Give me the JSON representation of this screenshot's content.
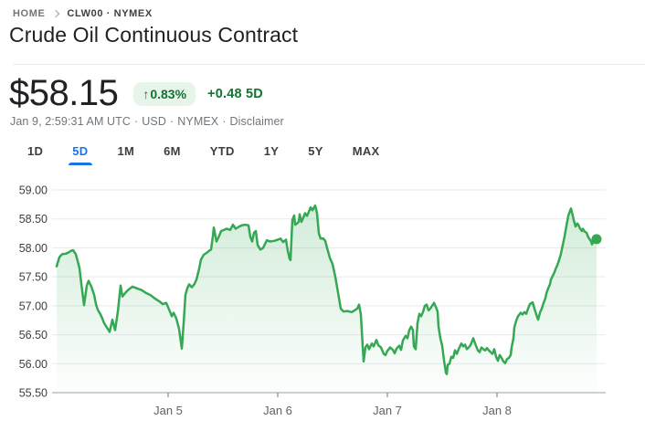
{
  "breadcrumb": {
    "home": "HOME",
    "symbol": "CLW00 · NYMEX"
  },
  "header": {
    "title": "Crude Oil Continuous Contract"
  },
  "quote": {
    "price": "$58.15",
    "arrow": "↑",
    "change_percent": "0.83%",
    "change_absolute": "+0.48 5D",
    "meta": {
      "timestamp": "Jan 9, 2:59:31 AM UTC",
      "separator": "·",
      "currency": "USD",
      "exchange": "NYMEX",
      "disclaimer": "Disclaimer"
    }
  },
  "tabs": [
    {
      "label": "1D",
      "selected": false
    },
    {
      "label": "5D",
      "selected": true
    },
    {
      "label": "1M",
      "selected": false
    },
    {
      "label": "6M",
      "selected": false
    },
    {
      "label": "YTD",
      "selected": false
    },
    {
      "label": "1Y",
      "selected": false
    },
    {
      "label": "5Y",
      "selected": false
    },
    {
      "label": "MAX",
      "selected": false
    }
  ],
  "colors": {
    "up_green": "#137333",
    "badge_bg": "#e6f4ea",
    "line_green": "#34a853",
    "accent_blue": "#1a73e8",
    "grid": "#e8eaed",
    "axis": "#9aa0a6",
    "text_primary": "#202124",
    "text_secondary": "#70757a"
  },
  "chart_data": {
    "type": "area",
    "title": "",
    "xlabel": "",
    "ylabel": "",
    "grid": true,
    "legend": false,
    "ylim": [
      55.5,
      59.0
    ],
    "xlim": [
      3.95,
      9.0
    ],
    "x_unit": "day of January",
    "y_ticks": [
      {
        "label": "59.00",
        "value": 59.0
      },
      {
        "label": "58.50",
        "value": 58.5
      },
      {
        "label": "58.00",
        "value": 58.0
      },
      {
        "label": "57.50",
        "value": 57.5
      },
      {
        "label": "57.00",
        "value": 57.0
      },
      {
        "label": "56.50",
        "value": 56.5
      },
      {
        "label": "56.00",
        "value": 56.0
      },
      {
        "label": "55.50",
        "value": 55.5,
        "axis": true
      }
    ],
    "x_ticks": [
      {
        "label": "Jan 5",
        "value": 5
      },
      {
        "label": "Jan 6",
        "value": 6
      },
      {
        "label": "Jan 7",
        "value": 7
      },
      {
        "label": "Jan 8",
        "value": 8
      }
    ],
    "end_marker": {
      "x": 8.908,
      "price": 58.15
    },
    "points": [
      [
        3.983,
        57.68
      ],
      [
        4.008,
        57.84
      ],
      [
        4.033,
        57.89
      ],
      [
        4.067,
        57.9
      ],
      [
        4.092,
        57.92
      ],
      [
        4.117,
        57.95
      ],
      [
        4.133,
        57.96
      ],
      [
        4.158,
        57.89
      ],
      [
        4.192,
        57.65
      ],
      [
        4.208,
        57.38
      ],
      [
        4.233,
        57.01
      ],
      [
        4.258,
        57.35
      ],
      [
        4.275,
        57.43
      ],
      [
        4.3,
        57.33
      ],
      [
        4.325,
        57.19
      ],
      [
        4.342,
        57.03
      ],
      [
        4.358,
        56.93
      ],
      [
        4.383,
        56.85
      ],
      [
        4.4,
        56.78
      ],
      [
        4.417,
        56.7
      ],
      [
        4.433,
        56.65
      ],
      [
        4.45,
        56.6
      ],
      [
        4.467,
        56.55
      ],
      [
        4.492,
        56.76
      ],
      [
        4.517,
        56.58
      ],
      [
        4.542,
        56.9
      ],
      [
        4.567,
        57.35
      ],
      [
        4.583,
        57.16
      ],
      [
        4.608,
        57.22
      ],
      [
        4.633,
        57.27
      ],
      [
        4.675,
        57.33
      ],
      [
        4.717,
        57.3
      ],
      [
        4.758,
        57.27
      ],
      [
        4.8,
        57.22
      ],
      [
        4.842,
        57.18
      ],
      [
        4.883,
        57.12
      ],
      [
        4.925,
        57.07
      ],
      [
        4.95,
        57.03
      ],
      [
        4.983,
        57.05
      ],
      [
        5.017,
        56.9
      ],
      [
        5.033,
        56.82
      ],
      [
        5.05,
        56.88
      ],
      [
        5.075,
        56.78
      ],
      [
        5.1,
        56.6
      ],
      [
        5.125,
        56.26
      ],
      [
        5.142,
        56.7
      ],
      [
        5.158,
        57.19
      ],
      [
        5.175,
        57.3
      ],
      [
        5.192,
        57.37
      ],
      [
        5.217,
        57.32
      ],
      [
        5.242,
        57.38
      ],
      [
        5.258,
        57.45
      ],
      [
        5.283,
        57.64
      ],
      [
        5.3,
        57.8
      ],
      [
        5.325,
        57.88
      ],
      [
        5.35,
        57.91
      ],
      [
        5.375,
        57.95
      ],
      [
        5.392,
        57.97
      ],
      [
        5.408,
        58.2
      ],
      [
        5.417,
        58.35
      ],
      [
        5.442,
        58.11
      ],
      [
        5.467,
        58.21
      ],
      [
        5.483,
        58.29
      ],
      [
        5.508,
        58.31
      ],
      [
        5.533,
        58.33
      ],
      [
        5.567,
        58.31
      ],
      [
        5.592,
        58.4
      ],
      [
        5.617,
        58.33
      ],
      [
        5.65,
        58.37
      ],
      [
        5.675,
        58.39
      ],
      [
        5.7,
        58.4
      ],
      [
        5.733,
        58.39
      ],
      [
        5.75,
        58.19
      ],
      [
        5.767,
        58.11
      ],
      [
        5.783,
        58.26
      ],
      [
        5.8,
        58.29
      ],
      [
        5.817,
        58.05
      ],
      [
        5.842,
        57.97
      ],
      [
        5.867,
        58.0
      ],
      [
        5.9,
        58.13
      ],
      [
        5.933,
        58.11
      ],
      [
        5.967,
        58.12
      ],
      [
        6.0,
        58.14
      ],
      [
        6.025,
        58.16
      ],
      [
        6.05,
        58.1
      ],
      [
        6.075,
        58.14
      ],
      [
        6.092,
        57.95
      ],
      [
        6.108,
        57.81
      ],
      [
        6.117,
        57.79
      ],
      [
        6.133,
        58.48
      ],
      [
        6.15,
        58.56
      ],
      [
        6.158,
        58.4
      ],
      [
        6.175,
        58.42
      ],
      [
        6.192,
        58.45
      ],
      [
        6.2,
        58.58
      ],
      [
        6.217,
        58.45
      ],
      [
        6.233,
        58.52
      ],
      [
        6.25,
        58.6
      ],
      [
        6.267,
        58.55
      ],
      [
        6.283,
        58.62
      ],
      [
        6.3,
        58.7
      ],
      [
        6.317,
        58.65
      ],
      [
        6.342,
        58.73
      ],
      [
        6.358,
        58.6
      ],
      [
        6.375,
        58.25
      ],
      [
        6.392,
        58.16
      ],
      [
        6.417,
        58.16
      ],
      [
        6.433,
        58.12
      ],
      [
        6.45,
        58.0
      ],
      [
        6.475,
        57.83
      ],
      [
        6.5,
        57.72
      ],
      [
        6.525,
        57.5
      ],
      [
        6.55,
        57.23
      ],
      [
        6.575,
        56.95
      ],
      [
        6.6,
        56.9
      ],
      [
        6.633,
        56.91
      ],
      [
        6.675,
        56.89
      ],
      [
        6.7,
        56.92
      ],
      [
        6.725,
        56.95
      ],
      [
        6.742,
        57.02
      ],
      [
        6.758,
        56.85
      ],
      [
        6.775,
        56.3
      ],
      [
        6.783,
        56.04
      ],
      [
        6.8,
        56.28
      ],
      [
        6.817,
        56.33
      ],
      [
        6.833,
        56.25
      ],
      [
        6.858,
        56.35
      ],
      [
        6.875,
        56.3
      ],
      [
        6.9,
        56.41
      ],
      [
        6.917,
        56.32
      ],
      [
        6.942,
        56.28
      ],
      [
        6.967,
        56.17
      ],
      [
        6.983,
        56.15
      ],
      [
        7.0,
        56.22
      ],
      [
        7.025,
        56.28
      ],
      [
        7.05,
        56.24
      ],
      [
        7.067,
        56.18
      ],
      [
        7.083,
        56.26
      ],
      [
        7.108,
        56.31
      ],
      [
        7.125,
        56.24
      ],
      [
        7.142,
        56.4
      ],
      [
        7.167,
        56.48
      ],
      [
        7.183,
        56.44
      ],
      [
        7.2,
        56.58
      ],
      [
        7.217,
        56.64
      ],
      [
        7.233,
        56.58
      ],
      [
        7.242,
        56.3
      ],
      [
        7.258,
        56.25
      ],
      [
        7.275,
        56.7
      ],
      [
        7.292,
        56.86
      ],
      [
        7.308,
        56.82
      ],
      [
        7.325,
        56.89
      ],
      [
        7.342,
        57.0
      ],
      [
        7.358,
        57.02
      ],
      [
        7.375,
        56.92
      ],
      [
        7.392,
        56.95
      ],
      [
        7.408,
        57.0
      ],
      [
        7.425,
        57.05
      ],
      [
        7.442,
        56.98
      ],
      [
        7.458,
        56.9
      ],
      [
        7.467,
        56.64
      ],
      [
        7.483,
        56.44
      ],
      [
        7.5,
        56.31
      ],
      [
        7.517,
        56.06
      ],
      [
        7.533,
        55.85
      ],
      [
        7.542,
        55.82
      ],
      [
        7.55,
        55.98
      ],
      [
        7.567,
        56.0
      ],
      [
        7.583,
        56.12
      ],
      [
        7.6,
        56.1
      ],
      [
        7.617,
        56.23
      ],
      [
        7.633,
        56.17
      ],
      [
        7.65,
        56.25
      ],
      [
        7.675,
        56.35
      ],
      [
        7.692,
        56.3
      ],
      [
        7.708,
        56.33
      ],
      [
        7.725,
        56.25
      ],
      [
        7.742,
        56.28
      ],
      [
        7.758,
        56.32
      ],
      [
        7.783,
        56.44
      ],
      [
        7.8,
        56.35
      ],
      [
        7.825,
        56.23
      ],
      [
        7.842,
        56.2
      ],
      [
        7.858,
        56.28
      ],
      [
        7.875,
        56.25
      ],
      [
        7.892,
        56.23
      ],
      [
        7.908,
        56.27
      ],
      [
        7.925,
        56.23
      ],
      [
        7.942,
        56.2
      ],
      [
        7.958,
        56.17
      ],
      [
        7.975,
        56.25
      ],
      [
        7.992,
        56.12
      ],
      [
        8.008,
        56.05
      ],
      [
        8.025,
        56.15
      ],
      [
        8.042,
        56.1
      ],
      [
        8.058,
        56.04
      ],
      [
        8.075,
        56.01
      ],
      [
        8.092,
        56.08
      ],
      [
        8.108,
        56.1
      ],
      [
        8.125,
        56.15
      ],
      [
        8.133,
        56.28
      ],
      [
        8.15,
        56.44
      ],
      [
        8.158,
        56.63
      ],
      [
        8.175,
        56.74
      ],
      [
        8.192,
        56.82
      ],
      [
        8.217,
        56.88
      ],
      [
        8.233,
        56.85
      ],
      [
        8.25,
        56.89
      ],
      [
        8.267,
        56.86
      ],
      [
        8.283,
        56.95
      ],
      [
        8.3,
        57.03
      ],
      [
        8.317,
        57.05
      ],
      [
        8.325,
        57.06
      ],
      [
        8.342,
        56.95
      ],
      [
        8.358,
        56.85
      ],
      [
        8.375,
        56.76
      ],
      [
        8.392,
        56.88
      ],
      [
        8.408,
        56.95
      ],
      [
        8.425,
        57.05
      ],
      [
        8.442,
        57.13
      ],
      [
        8.45,
        57.21
      ],
      [
        8.467,
        57.3
      ],
      [
        8.483,
        57.37
      ],
      [
        8.492,
        57.45
      ],
      [
        8.508,
        57.52
      ],
      [
        8.525,
        57.58
      ],
      [
        8.533,
        57.63
      ],
      [
        8.55,
        57.7
      ],
      [
        8.567,
        57.79
      ],
      [
        8.583,
        57.9
      ],
      [
        8.6,
        58.05
      ],
      [
        8.617,
        58.2
      ],
      [
        8.633,
        58.38
      ],
      [
        8.65,
        58.55
      ],
      [
        8.667,
        58.64
      ],
      [
        8.675,
        58.68
      ],
      [
        8.692,
        58.55
      ],
      [
        8.7,
        58.48
      ],
      [
        8.717,
        58.37
      ],
      [
        8.733,
        58.42
      ],
      [
        8.742,
        58.4
      ],
      [
        8.758,
        58.33
      ],
      [
        8.775,
        58.29
      ],
      [
        8.783,
        58.33
      ],
      [
        8.8,
        58.28
      ],
      [
        8.817,
        58.26
      ],
      [
        8.833,
        58.18
      ],
      [
        8.842,
        58.16
      ],
      [
        8.858,
        58.11
      ],
      [
        8.867,
        58.06
      ],
      [
        8.883,
        58.13
      ],
      [
        8.908,
        58.15
      ]
    ]
  }
}
